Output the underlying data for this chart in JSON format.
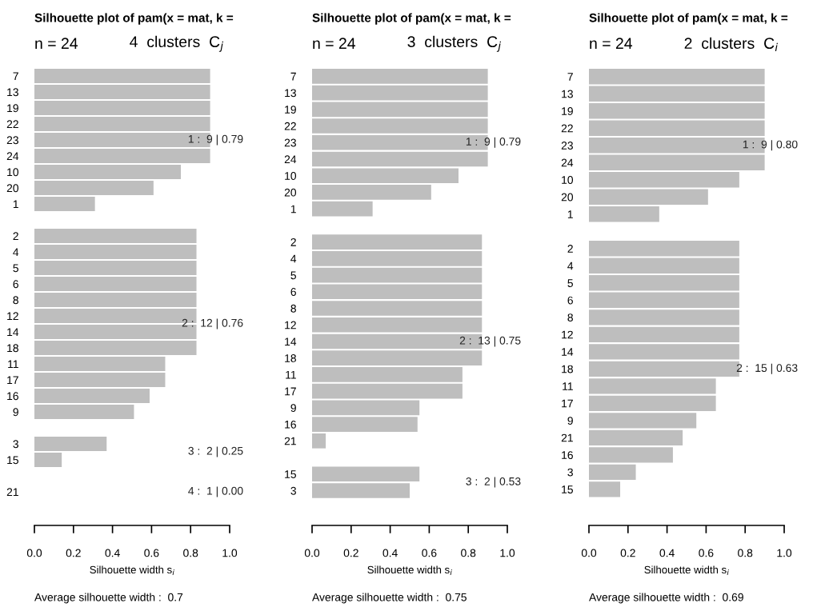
{
  "chart_data": [
    {
      "type": "bar",
      "orientation": "horizontal",
      "title": "Silhouette plot of pam(x = mat, k =",
      "subtitle": "n = 24",
      "xlabel": "Silhouette width s$_{i}$",
      "color": "#bebebe",
      "grid": false,
      "categories": [
        "7",
        "13",
        "19",
        "22",
        "23",
        "24",
        "10",
        "20",
        "1",
        null,
        "2",
        "4",
        "5",
        "6",
        "8",
        "12",
        "14",
        "18",
        "11",
        "17",
        "16",
        "9",
        null,
        "3",
        "15",
        null,
        "21"
      ],
      "values": [
        0.9,
        0.9,
        0.9,
        0.9,
        0.9,
        0.9,
        0.75,
        0.61,
        0.31,
        null,
        0.83,
        0.83,
        0.83,
        0.83,
        0.83,
        0.83,
        0.83,
        0.83,
        0.67,
        0.67,
        0.59,
        0.51,
        null,
        0.37,
        0.14,
        null,
        0
      ],
      "xlim": [
        0,
        1
      ],
      "xticks": [
        {
          "value": 0,
          "label": "0.0"
        },
        {
          "value": 0.2,
          "label": "0.2"
        },
        {
          "value": 0.4,
          "label": "0.4"
        },
        {
          "value": 0.6,
          "label": "0.6"
        },
        {
          "value": 0.8,
          "label": "0.8"
        },
        {
          "value": 1,
          "label": "1.0"
        }
      ],
      "annotations": [
        "4  clusters  C$_{j}$",
        "Average silhouette width :  0.7",
        "1 :  9 | 0.79",
        "2 :  12 | 0.76",
        "3 :  2 | 0.25",
        "4 :  1 | 0.00"
      ]
    },
    {
      "type": "bar",
      "orientation": "horizontal",
      "title": "Silhouette plot of pam(x = mat, k =",
      "subtitle": "n = 24",
      "xlabel": "Silhouette width s$_{i}$",
      "color": "#bebebe",
      "grid": false,
      "categories": [
        "7",
        "13",
        "19",
        "22",
        "23",
        "24",
        "10",
        "20",
        "1",
        null,
        "2",
        "4",
        "5",
        "6",
        "8",
        "12",
        "14",
        "18",
        "11",
        "17",
        "9",
        "16",
        "21",
        null,
        "15",
        "3"
      ],
      "values": [
        0.9,
        0.9,
        0.9,
        0.9,
        0.9,
        0.9,
        0.75,
        0.61,
        0.31,
        null,
        0.87,
        0.87,
        0.87,
        0.87,
        0.87,
        0.87,
        0.87,
        0.87,
        0.77,
        0.77,
        0.55,
        0.54,
        0.07,
        null,
        0.55,
        0.5
      ],
      "xlim": [
        0,
        1
      ],
      "xticks": [
        {
          "value": 0,
          "label": "0.0"
        },
        {
          "value": 0.2,
          "label": "0.2"
        },
        {
          "value": 0.4,
          "label": "0.4"
        },
        {
          "value": 0.6,
          "label": "0.6"
        },
        {
          "value": 0.8,
          "label": "0.8"
        },
        {
          "value": 1,
          "label": "1.0"
        }
      ],
      "annotations": [
        "3  clusters  C$_{j}$",
        "Average silhouette width :  0.75",
        "1 :  9 | 0.79",
        "2 :  13 | 0.75",
        "3 :  2 | 0.53"
      ]
    },
    {
      "type": "bar",
      "orientation": "horizontal",
      "title": "Silhouette plot of pam(x = mat, k =",
      "subtitle": "n = 24",
      "xlabel": "Silhouette width s$_{i}$",
      "color": "#bebebe",
      "grid": false,
      "categories": [
        "7",
        "13",
        "19",
        "22",
        "23",
        "24",
        "10",
        "20",
        "1",
        null,
        "2",
        "4",
        "5",
        "6",
        "8",
        "12",
        "14",
        "18",
        "11",
        "17",
        "9",
        "21",
        "16",
        "3",
        "15"
      ],
      "values": [
        0.9,
        0.9,
        0.9,
        0.9,
        0.9,
        0.9,
        0.77,
        0.61,
        0.36,
        null,
        0.77,
        0.77,
        0.77,
        0.77,
        0.77,
        0.77,
        0.77,
        0.77,
        0.65,
        0.65,
        0.55,
        0.48,
        0.43,
        0.24,
        0.16
      ],
      "xlim": [
        0,
        1
      ],
      "xticks": [
        {
          "value": 0,
          "label": "0.0"
        },
        {
          "value": 0.2,
          "label": "0.2"
        },
        {
          "value": 0.4,
          "label": "0.4"
        },
        {
          "value": 0.6,
          "label": "0.6"
        },
        {
          "value": 0.8,
          "label": "0.8"
        },
        {
          "value": 1,
          "label": "1.0"
        }
      ],
      "annotations": [
        "2  clusters  C$_{i}$",
        "Average silhouette width :  0.69",
        "1 :  9 | 0.80",
        "2 :  15 | 0.63"
      ]
    }
  ]
}
